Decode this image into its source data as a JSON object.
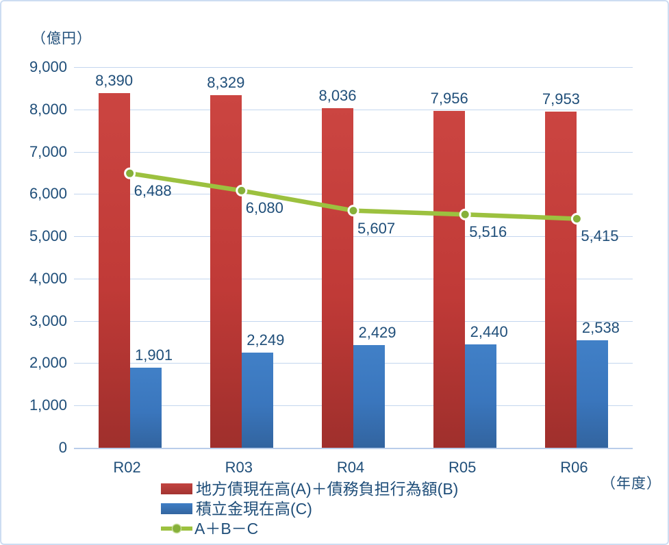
{
  "unit_y": "（億円）",
  "unit_x": "（年度）",
  "colors": {
    "text": "#1F4E79",
    "gridline": "#c3d6ee",
    "axis_line": "#b9cdea",
    "frame_border": "#cdddf2",
    "red_bar": "#BE3A36",
    "blue_bar": "#3A76BD",
    "green_line": "#9CC13F",
    "green_marker": "#86B03A"
  },
  "chart_data": {
    "type": "bar",
    "subtype": "grouped bars with overlaid line",
    "categories": [
      "R02",
      "R03",
      "R04",
      "R05",
      "R06"
    ],
    "series": [
      {
        "name": "地方債現在高(A)＋債務負担行為額(B)",
        "type": "bar",
        "color": "#BE3A36",
        "values": [
          8390,
          8329,
          8036,
          7956,
          7953
        ]
      },
      {
        "name": "積立金現在高(C)",
        "type": "bar",
        "color": "#3A76BD",
        "values": [
          1901,
          2249,
          2429,
          2440,
          2538
        ]
      },
      {
        "name": "A＋B－C",
        "type": "line",
        "color": "#9CC13F",
        "marker_color": "#86B03A",
        "values": [
          6488,
          6080,
          5607,
          5516,
          5415
        ]
      }
    ],
    "ylabel": "（億円）",
    "xlabel": "（年度）",
    "ylim": [
      0,
      9000
    ],
    "ytick_step": 1000,
    "ytick_labels": [
      "0",
      "1,000",
      "2,000",
      "3,000",
      "4,000",
      "5,000",
      "6,000",
      "7,000",
      "8,000",
      "9,000"
    ],
    "grid": true,
    "data_labels": true,
    "legend_position": "bottom-center"
  }
}
